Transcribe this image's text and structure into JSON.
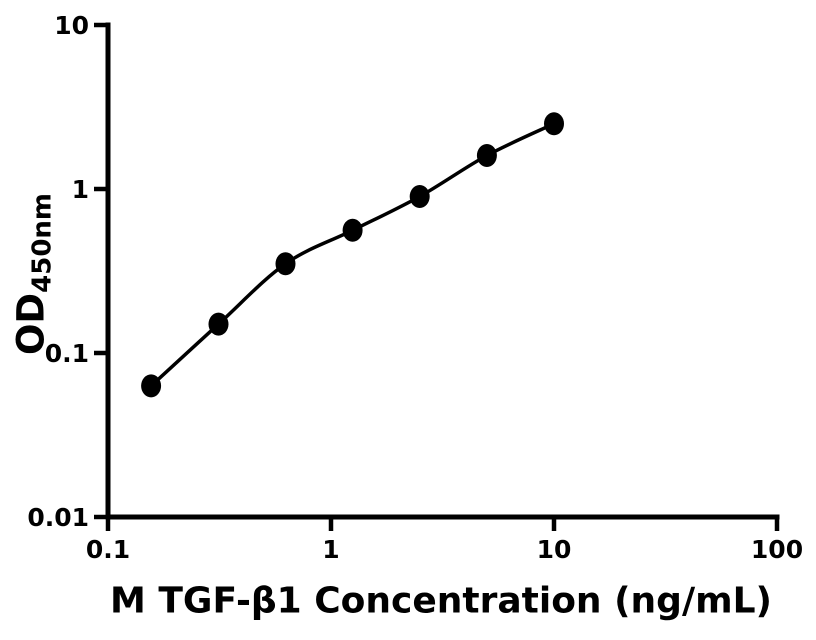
{
  "figure": {
    "background": "#ffffff",
    "ink": "#000000"
  },
  "chart_data": {
    "type": "scatter",
    "title": "",
    "xlabel": "M TGF-β1 Concentration (ng/mL)",
    "ylabel": "OD450nm",
    "ylabel_main": "OD",
    "ylabel_subscript": "450nm",
    "x_scale": "log10",
    "y_scale": "log10",
    "xlim": [
      0.1,
      100
    ],
    "ylim": [
      0.01,
      10
    ],
    "grid": false,
    "legend": false,
    "x_ticks": [
      {
        "value": 0.1,
        "label": "0.1"
      },
      {
        "value": 1,
        "label": "1"
      },
      {
        "value": 10,
        "label": "10"
      },
      {
        "value": 100,
        "label": "100"
      }
    ],
    "y_ticks": [
      {
        "value": 0.01,
        "label": "0.01"
      },
      {
        "value": 0.1,
        "label": "0.1"
      },
      {
        "value": 1,
        "label": "1"
      },
      {
        "value": 10,
        "label": "10"
      }
    ],
    "series": [
      {
        "marker": "filled-circle",
        "color": "#000000",
        "line_style": "smooth-curve",
        "points": [
          {
            "x": 0.156,
            "y": 0.063
          },
          {
            "x": 0.313,
            "y": 0.15
          },
          {
            "x": 0.625,
            "y": 0.35
          },
          {
            "x": 1.25,
            "y": 0.56
          },
          {
            "x": 2.5,
            "y": 0.9
          },
          {
            "x": 5,
            "y": 1.6
          },
          {
            "x": 10,
            "y": 2.5
          }
        ]
      }
    ]
  }
}
